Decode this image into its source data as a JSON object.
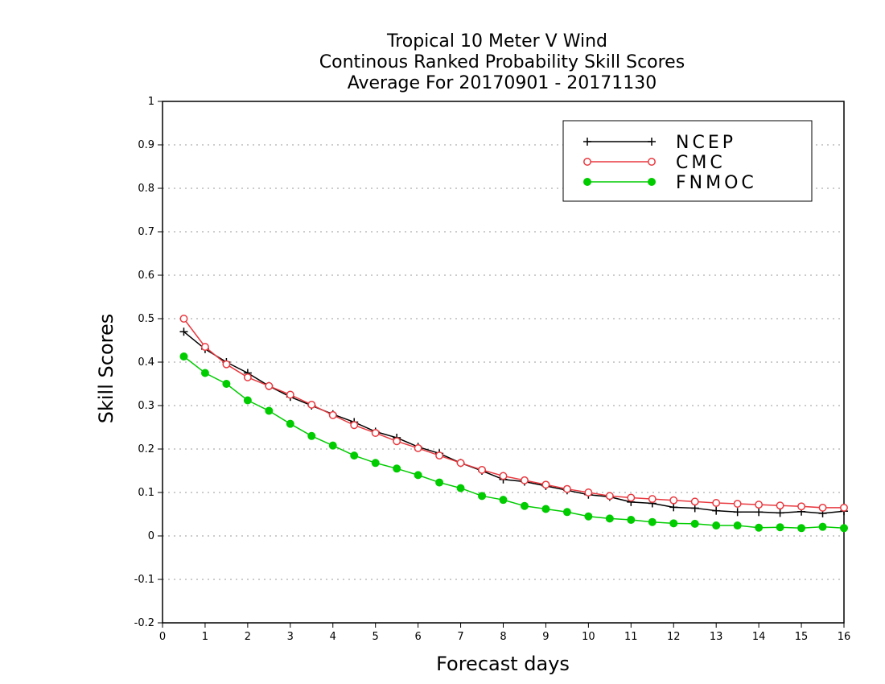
{
  "chart_data": {
    "type": "line",
    "title_lines": [
      "Tropical 10 Meter V Wind",
      "Continous Ranked Probability Skill Scores",
      "Average For 20170901 - 20171130"
    ],
    "xlabel": "Forecast days",
    "ylabel": "Skill Scores",
    "xlim": [
      0,
      16
    ],
    "ylim": [
      -0.2,
      1
    ],
    "xticks": [
      "0",
      "1",
      "2",
      "3",
      "4",
      "5",
      "6",
      "7",
      "8",
      "9",
      "10",
      "11",
      "12",
      "13",
      "14",
      "15",
      "16"
    ],
    "yticks": [
      "-0.2",
      "-0.1",
      "0",
      "0.1",
      "0.2",
      "0.3",
      "0.4",
      "0.5",
      "0.6",
      "0.7",
      "0.8",
      "0.9",
      "1"
    ],
    "grid": "horizontal dotted",
    "legend_position": "top-right",
    "x": [
      0.5,
      1,
      1.5,
      2,
      2.5,
      3,
      3.5,
      4,
      4.5,
      5,
      5.5,
      6,
      6.5,
      7,
      7.5,
      8,
      8.5,
      9,
      9.5,
      10,
      10.5,
      11,
      11.5,
      12,
      12.5,
      13,
      13.5,
      14,
      14.5,
      15,
      15.5,
      16
    ],
    "series": [
      {
        "name": "NCEP",
        "color": "#000000",
        "marker": "plus",
        "values": [
          0.47,
          0.43,
          0.4,
          0.375,
          0.345,
          0.32,
          0.3,
          0.28,
          0.262,
          0.24,
          0.226,
          0.205,
          0.19,
          0.168,
          0.15,
          0.13,
          0.125,
          0.115,
          0.105,
          0.095,
          0.09,
          0.078,
          0.075,
          0.066,
          0.064,
          0.058,
          0.055,
          0.055,
          0.053,
          0.056,
          0.052,
          0.057
        ]
      },
      {
        "name": "CMC",
        "color": "#e8393f",
        "marker": "open-circle",
        "values": [
          0.5,
          0.435,
          0.395,
          0.365,
          0.345,
          0.325,
          0.302,
          0.278,
          0.255,
          0.237,
          0.218,
          0.202,
          0.185,
          0.168,
          0.152,
          0.138,
          0.128,
          0.118,
          0.108,
          0.1,
          0.092,
          0.088,
          0.085,
          0.082,
          0.079,
          0.076,
          0.074,
          0.072,
          0.07,
          0.068,
          0.065,
          0.065
        ]
      },
      {
        "name": "FNMOC",
        "color": "#00cc00",
        "marker": "filled-circle",
        "values": [
          0.413,
          0.375,
          0.35,
          0.312,
          0.288,
          0.258,
          0.23,
          0.208,
          0.185,
          0.168,
          0.155,
          0.14,
          0.123,
          0.11,
          0.092,
          0.083,
          0.069,
          0.062,
          0.055,
          0.045,
          0.04,
          0.037,
          0.032,
          0.029,
          0.028,
          0.024,
          0.024,
          0.019,
          0.02,
          0.018,
          0.021,
          0.018
        ]
      }
    ]
  }
}
